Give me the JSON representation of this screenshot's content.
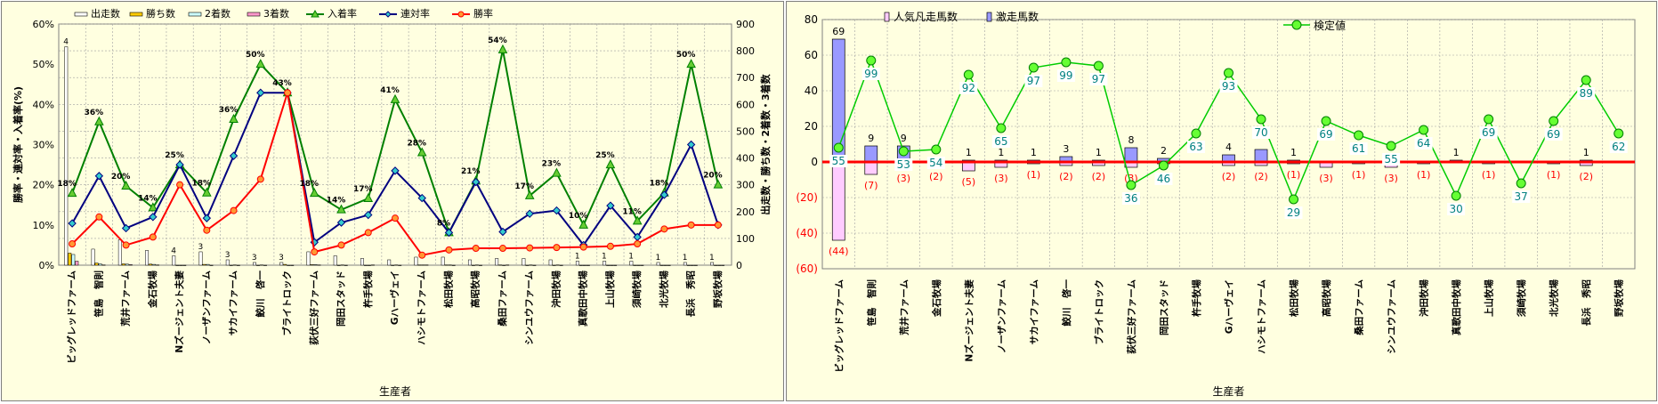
{
  "chart_data": [
    {
      "type": "bar+line",
      "title": "",
      "xlabel": "生産者",
      "ylabel_left": "勝率・連対率・入着率(%)",
      "ylabel_right": "出走数・勝ち数・2着数・3着数",
      "ylim_left": [
        0,
        60
      ],
      "ylim_right": [
        0,
        900
      ],
      "left_ticks": [
        "0%",
        "10%",
        "20%",
        "30%",
        "40%",
        "50%",
        "60%"
      ],
      "right_ticks": [
        "0",
        "100",
        "200",
        "300",
        "400",
        "500",
        "600",
        "700",
        "800",
        "900"
      ],
      "grid": true,
      "legend_position": "top",
      "categories": [
        "ビッグレッドファーム",
        "笹島　智則",
        "荒井ファーム",
        "金石牧場",
        "Nズージェント夫妻",
        "ノーザンファーム",
        "サカイファーム",
        "鮫川　啓一",
        "ブライトロック",
        "荻伏三好ファーム",
        "岡田スタッド",
        "杵手牧場",
        "Gハーヴェイ",
        "ハシモトファーム",
        "松田牧場",
        "高昭牧場",
        "桑田ファーム",
        "シンユウファーム",
        "沖田牧場",
        "真歌田中牧場",
        "上山牧場",
        "須崎牧場",
        "北光牧場",
        "長浜　秀昭",
        "野坂牧場"
      ],
      "bar_series": [
        {
          "name": "出走数",
          "values": [
            815,
            60,
            95,
            55,
            35,
            50,
            20,
            10,
            10,
            50,
            35,
            25,
            20,
            30,
            30,
            20,
            25,
            25,
            20,
            15,
            15,
            15,
            10,
            10,
            10
          ]
        },
        {
          "name": "勝ち数",
          "values": [
            45,
            8,
            5,
            4,
            0,
            3,
            0,
            0,
            3,
            2,
            0,
            0,
            0,
            1,
            1,
            0,
            1,
            0,
            0,
            0,
            0,
            0,
            0,
            0,
            0
          ]
        },
        {
          "name": "2着数",
          "values": [
            40,
            5,
            4,
            3,
            0,
            3,
            1,
            1,
            0,
            2,
            1,
            0,
            1,
            1,
            1,
            1,
            0,
            1,
            1,
            0,
            0,
            0,
            0,
            0,
            0
          ]
        },
        {
          "name": "3着数",
          "values": [
            15,
            1,
            2,
            1,
            0,
            0,
            0,
            0,
            0,
            1,
            0,
            1,
            0,
            1,
            0,
            0,
            1,
            0,
            0,
            0,
            0,
            0,
            0,
            0,
            0
          ]
        }
      ],
      "bar_labels": [
        "4",
        "",
        "",
        "",
        "4",
        "3",
        "3",
        "3",
        "3",
        "",
        "",
        "",
        "",
        "",
        "",
        "",
        "",
        "",
        "",
        "1",
        "1",
        "1",
        "1",
        "1",
        "1"
      ],
      "line_series": [
        {
          "name": "入着率",
          "values": [
            17.9,
            35.7,
            19.7,
            14.3,
            25,
            18,
            36.3,
            50,
            42.9,
            17.9,
            13.8,
            16.6,
            41.2,
            28,
            8.1,
            21,
            53.6,
            17.3,
            22.9,
            10,
            25,
            11,
            18,
            50,
            20
          ]
        },
        {
          "name": "連対率",
          "values": [
            10.4,
            22.2,
            9.2,
            12,
            25,
            11.7,
            27.2,
            42.9,
            42.9,
            5.7,
            10.6,
            12.5,
            23.5,
            16.7,
            8.1,
            20.7,
            8.3,
            12.8,
            13.6,
            5,
            14.8,
            7,
            17.5,
            30,
            10
          ]
        },
        {
          "name": "勝率",
          "values": [
            5.3,
            12,
            5,
            7,
            20,
            8.7,
            13.6,
            21.4,
            42.9,
            3.3,
            5,
            8.1,
            11.7,
            2.5,
            3.8,
            4.2,
            4.2,
            4.3,
            4.4,
            4.5,
            4.7,
            5.3,
            9,
            10,
            10
          ]
        }
      ],
      "line_labels": [
        "18%",
        "36%",
        "20%",
        "14%",
        "25%",
        "18%",
        "36%",
        "50%",
        "43%",
        "18%",
        "14%",
        "17%",
        "41%",
        "28%",
        "8%",
        "21%",
        "54%",
        "17%",
        "23%",
        "10%",
        "25%",
        "11%",
        "18%",
        "50%",
        "20%"
      ]
    },
    {
      "type": "bar+line",
      "title": "",
      "xlabel": "生産者",
      "ylim": [
        -60,
        80
      ],
      "ticks": [
        "(60)",
        "(40)",
        "(20)",
        "0",
        "20",
        "40",
        "60",
        "80"
      ],
      "grid": true,
      "legend_position": "top",
      "categories": [
        "ビッグレッドファーム",
        "笹島　智則",
        "荒井ファーム",
        "金石牧場",
        "Nズージェント夫妻",
        "ノーザンファーム",
        "サカイファーム",
        "鮫川　啓一",
        "ブライトロック",
        "荻伏三好ファーム",
        "岡田スタッド",
        "杵手牧場",
        "Gハーヴェイ",
        "ハシモトファーム",
        "松田牧場",
        "高昭牧場",
        "桑田ファーム",
        "シンユウファーム",
        "沖田牧場",
        "真歌田中牧場",
        "上山牧場",
        "須崎牧場",
        "北光牧場",
        "長浜　秀昭",
        "野坂牧場"
      ],
      "bar_series": [
        {
          "name": "人気凡走馬数",
          "values": [
            -44,
            -7,
            -3,
            -2,
            -5,
            -3,
            -1,
            -2,
            -2,
            -3,
            -1,
            0,
            -2,
            -2,
            -1,
            -3,
            -1,
            -3,
            -1,
            0,
            -1,
            0,
            -1,
            -2,
            0
          ]
        },
        {
          "name": "激走馬数",
          "values": [
            69,
            9,
            9,
            2,
            1,
            1,
            1,
            3,
            1,
            8,
            2,
            0,
            4,
            7,
            1,
            0,
            0,
            0,
            0,
            1,
            0,
            0,
            0,
            1,
            0
          ]
        }
      ],
      "bar_labels_positive": [
        "69",
        "9",
        "9",
        "2",
        "1",
        "1",
        "1",
        "3",
        "1",
        "8",
        "2",
        "",
        "4",
        "",
        "1",
        "",
        "",
        "",
        "",
        "1",
        "",
        "",
        "",
        "1",
        ""
      ],
      "bar_labels_negative": [
        "(44)",
        "(7)",
        "(3)",
        "(2)",
        "(5)",
        "(3)",
        "(1)",
        "(2)",
        "(2)",
        "(3)",
        "",
        "",
        "(2)",
        "(2)",
        "(1)",
        "(3)",
        "(1)",
        "(3)",
        "(1)",
        "",
        "(1)",
        "",
        "(1)",
        "(2)",
        ""
      ],
      "line_series": [
        {
          "name": "検定値",
          "values": [
            8,
            57,
            6,
            7,
            49,
            19,
            53,
            56,
            54,
            -13,
            -2,
            16,
            50,
            24,
            -21,
            23,
            15,
            9,
            18,
            -19,
            24,
            -12,
            23,
            46,
            16
          ]
        }
      ],
      "line_labels": [
        "55",
        "99",
        "53",
        "54",
        "92",
        "65",
        "97",
        "99",
        "97",
        "36",
        "46",
        "63",
        "93",
        "70",
        "29",
        "69",
        "61",
        "55",
        "64",
        "30",
        "69",
        "37",
        "69",
        "89",
        "62"
      ]
    }
  ],
  "colors": {
    "panel_bg": "#ffffe0",
    "grid": "#a0a0a0",
    "rate_place": "#008000",
    "rate_place_marker": "#66cc33",
    "rate_rentai": "#000080",
    "rate_rentai_marker": "#33cccc",
    "rate_win": "#ff0000",
    "rate_win_marker": "#ff9933",
    "bar_runs": "#ffffff",
    "bar_wins": "#ffcc00",
    "bar_second": "#ccffff",
    "bar_third": "#ff99cc",
    "popular_bar": "#ffccff",
    "upset_bar": "#9999ff",
    "test_line": "#00cc00",
    "zero_line": "#ff0000",
    "negative_label": "#ff0000",
    "score_label": "#008080"
  }
}
